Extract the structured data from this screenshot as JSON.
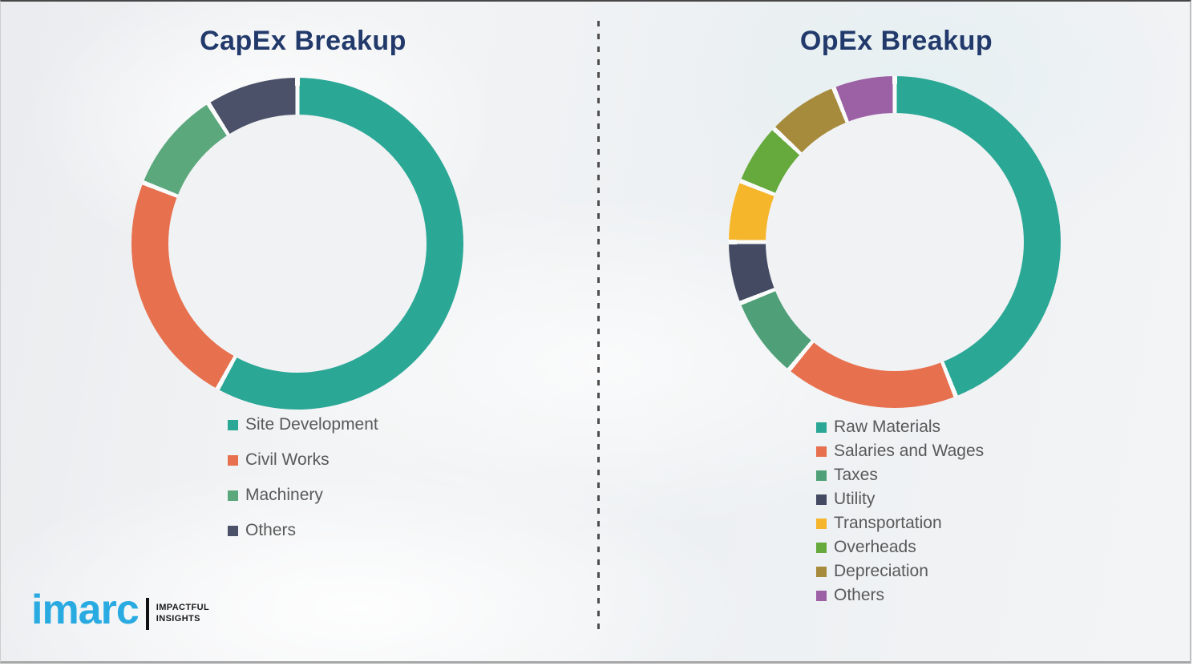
{
  "page": {
    "background_color": "#f0f1f3",
    "divider_color": "#4e4e4e",
    "title_color": "#223a6b",
    "legend_text_color": "#595959"
  },
  "capex": {
    "title": "CapEx Breakup"
  },
  "opex": {
    "title": "OpEx Breakup"
  },
  "chart_data": [
    {
      "type": "pie",
      "subtype": "donut",
      "title": "CapEx Breakup",
      "categories": [
        "Site Development",
        "Civil Works",
        "Machinery",
        "Others"
      ],
      "values": [
        58,
        23,
        10,
        9
      ],
      "colors": [
        "#2ba796",
        "#e7704e",
        "#5ca87d",
        "#4b5168"
      ],
      "start_angle_deg": 0,
      "direction": "clockwise",
      "legend_position": "below-left",
      "data_labels_shown": false
    },
    {
      "type": "pie",
      "subtype": "donut",
      "title": "OpEx Breakup",
      "categories": [
        "Raw Materials",
        "Salaries and Wages",
        "Taxes",
        "Utility",
        "Transportation",
        "Overheads",
        "Depreciation",
        "Others"
      ],
      "values": [
        44,
        17,
        8,
        6,
        6,
        6,
        7,
        6
      ],
      "colors": [
        "#2ba796",
        "#e7704e",
        "#4fa079",
        "#434a62",
        "#f6b62c",
        "#66a93d",
        "#a78b3d",
        "#9c60a5"
      ],
      "start_angle_deg": 0,
      "direction": "clockwise",
      "legend_position": "below-left",
      "data_labels_shown": false
    }
  ],
  "logo": {
    "brand": "imarc",
    "tagline_line1": "IMPACTFUL",
    "tagline_line2": "INSIGHTS",
    "brand_color": "#29abe2"
  }
}
